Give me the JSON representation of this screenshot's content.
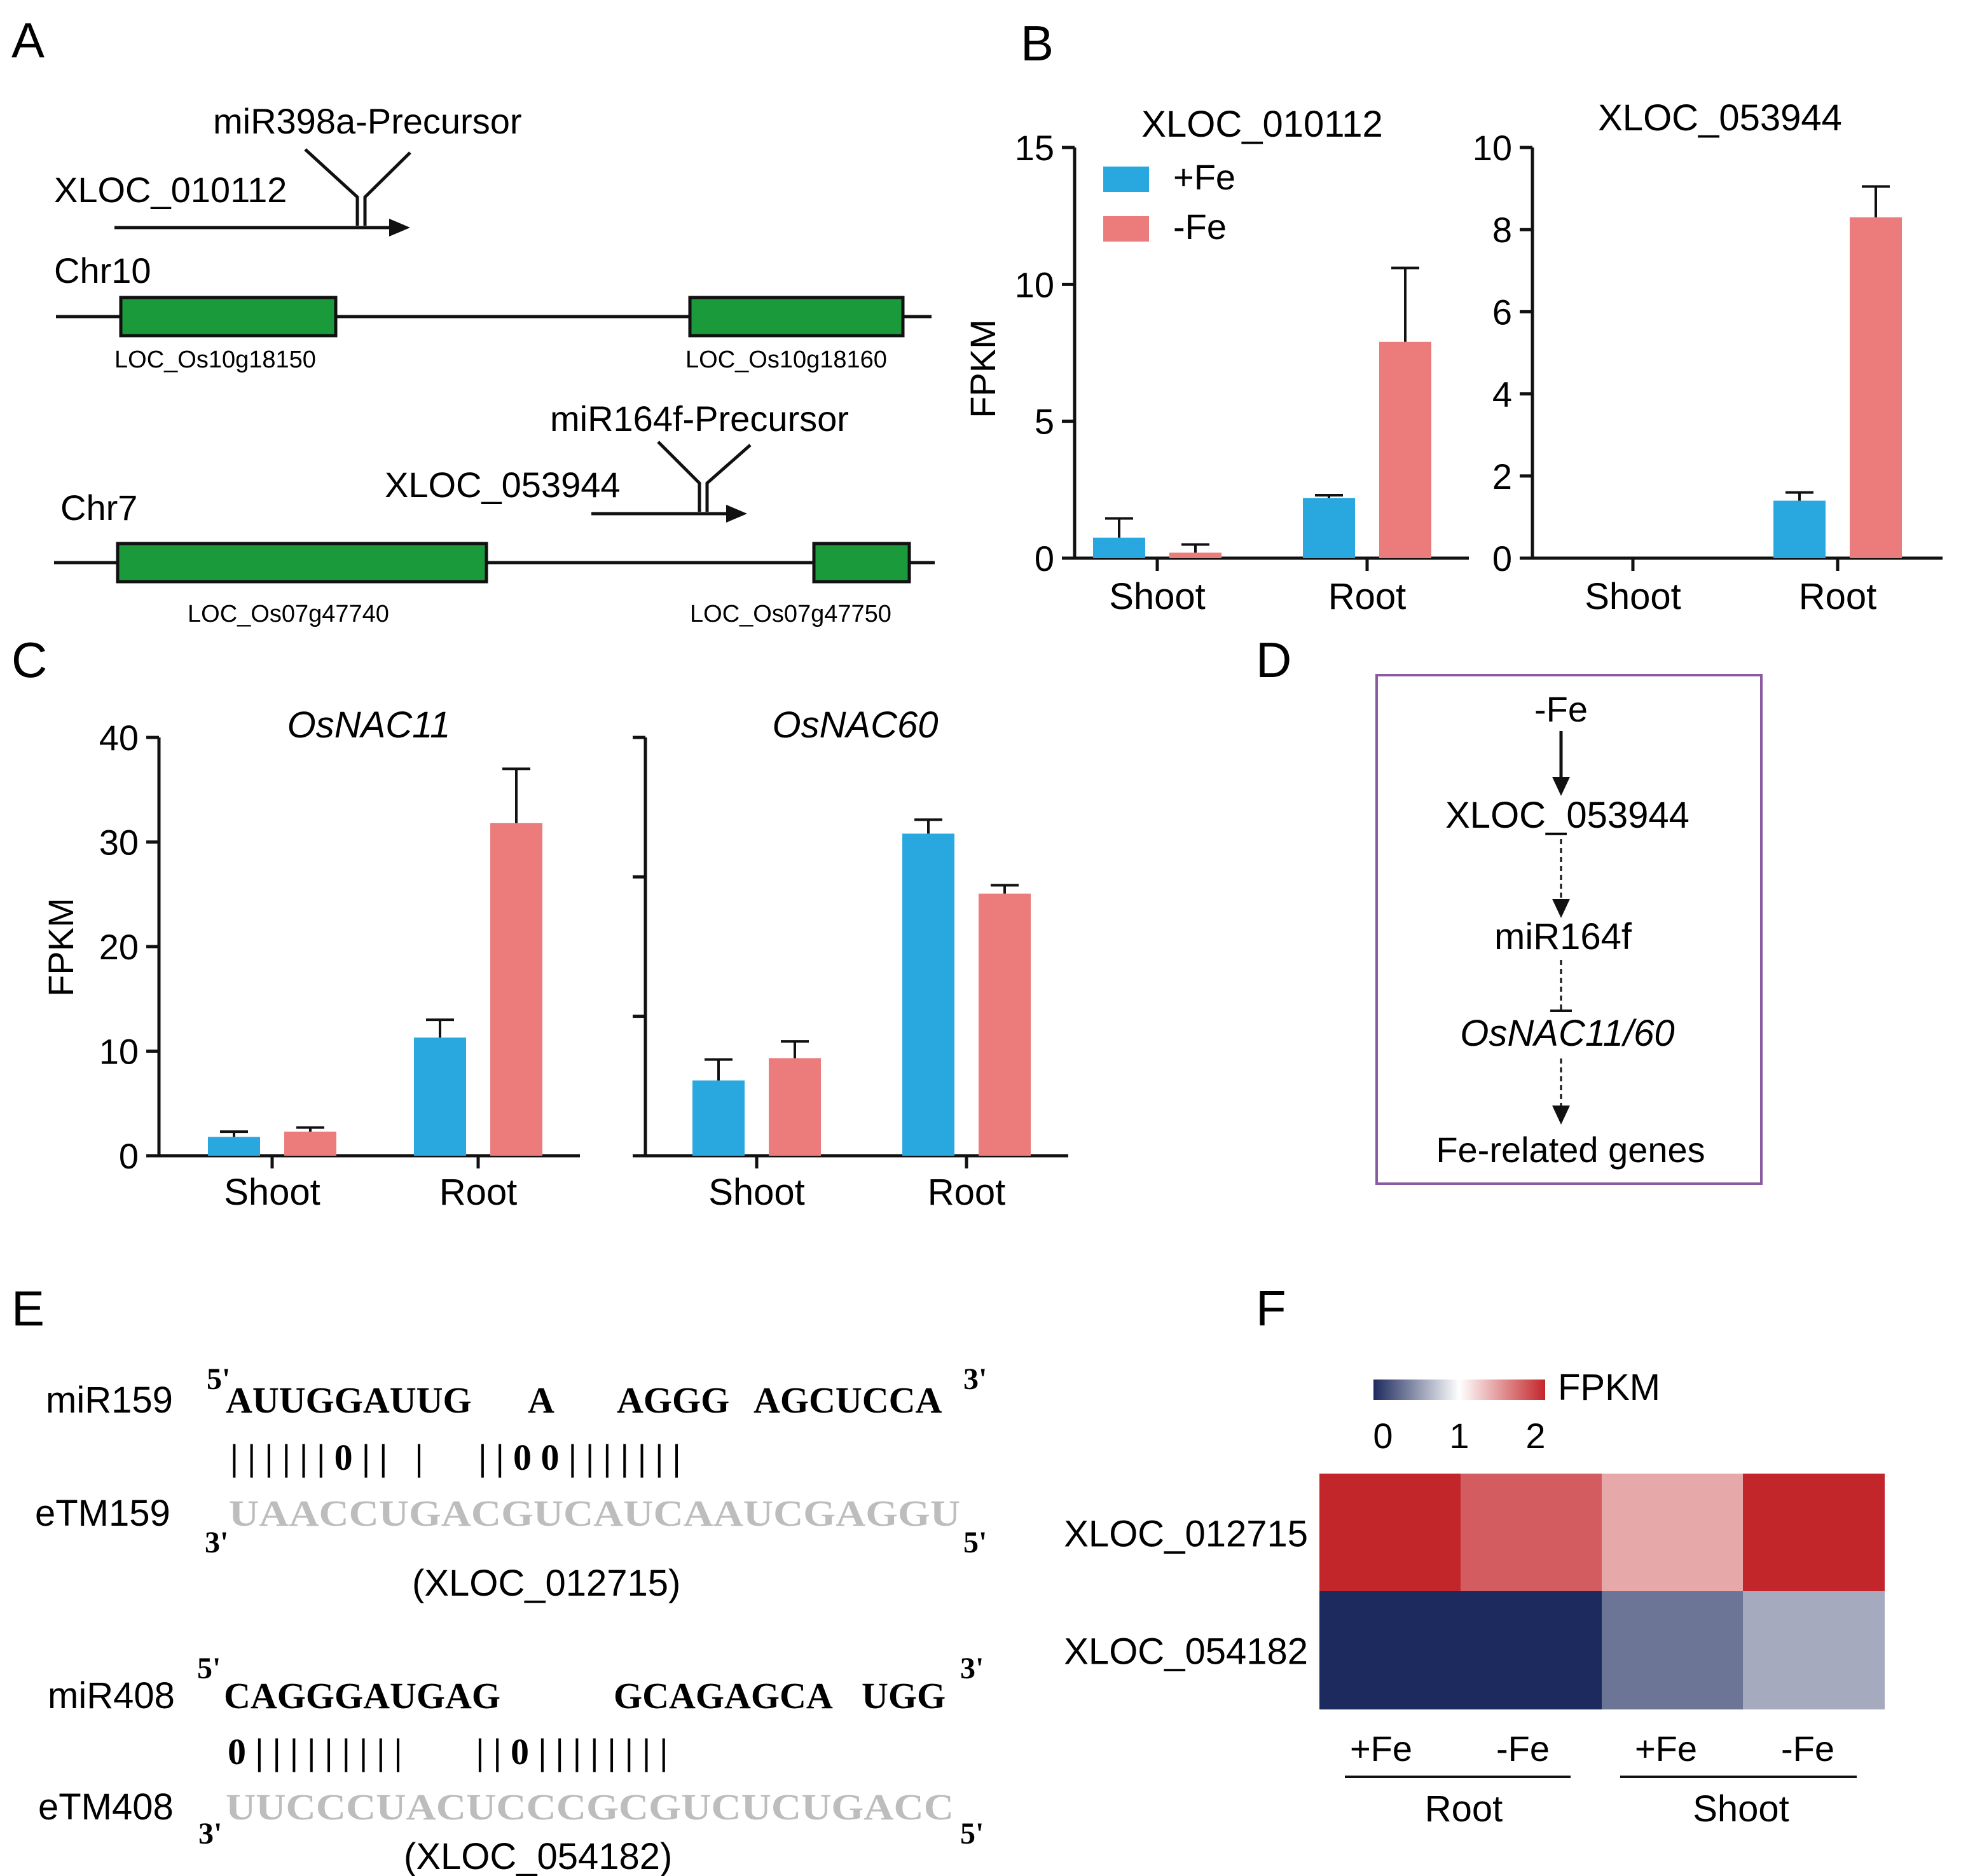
{
  "panel_labels": {
    "a": "A",
    "b": "B",
    "c": "C",
    "d": "D",
    "e": "E",
    "f": "F"
  },
  "colors": {
    "plus_fe": "#29a8e0",
    "minus_fe": "#ec7b7b",
    "gene_box": "#1a9a3a",
    "frame_d": "#8a5aa0"
  },
  "panelA": {
    "precursor1": "miR398a-Precursor",
    "xloc1": "XLOC_010112",
    "chr1": "Chr10",
    "gene1a": "LOC_Os10g18150",
    "gene1b": "LOC_Os10g18160",
    "precursor2": "miR164f-Precursor",
    "xloc2": "XLOC_053944",
    "chr2": "Chr7",
    "gene2a": "LOC_Os07g47740",
    "gene2b": "LOC_Os07g47750"
  },
  "legend": {
    "plus": "+Fe",
    "minus": "-Fe"
  },
  "chart_data": [
    {
      "id": "b1",
      "type": "bar",
      "title": "XLOC_010112",
      "ylabel": "FPKM",
      "ylim": [
        0,
        15
      ],
      "yticks": [
        "0",
        "5",
        "10",
        "15"
      ],
      "categories": [
        "Shoot",
        "Root"
      ],
      "series": [
        {
          "name": "+Fe",
          "values": [
            0.75,
            2.2
          ],
          "errors": [
            0.7,
            0.1
          ]
        },
        {
          "name": "-Fe",
          "values": [
            0.2,
            7.9
          ],
          "errors": [
            0.3,
            2.7
          ]
        }
      ]
    },
    {
      "id": "b2",
      "type": "bar",
      "title": "XLOC_053944",
      "ylabel": "",
      "ylim": [
        0,
        10
      ],
      "yticks": [
        "0",
        "2",
        "4",
        "6",
        "8",
        "10"
      ],
      "categories": [
        "Shoot",
        "Root"
      ],
      "series": [
        {
          "name": "+Fe",
          "values": [
            0,
            1.4
          ],
          "errors": [
            0,
            0.2
          ]
        },
        {
          "name": "-Fe",
          "values": [
            0,
            8.3
          ],
          "errors": [
            0,
            0.75
          ]
        }
      ]
    },
    {
      "id": "c1",
      "type": "bar",
      "title": "OsNAC11",
      "ylabel": "FPKM",
      "ylim": [
        0,
        40
      ],
      "yticks": [
        "0",
        "10",
        "20",
        "30",
        "40"
      ],
      "categories": [
        "Shoot",
        "Root"
      ],
      "series": [
        {
          "name": "+Fe",
          "values": [
            1.8,
            11.3
          ],
          "errors": [
            0.5,
            1.7
          ]
        },
        {
          "name": "-Fe",
          "values": [
            2.3,
            31.8
          ],
          "errors": [
            0.4,
            5.2
          ]
        }
      ]
    },
    {
      "id": "c2",
      "type": "bar",
      "title": "OsNAC60",
      "ylabel": "",
      "ylim": [
        0,
        30
      ],
      "yticks": [
        "",
        "",
        "",
        ""
      ],
      "categories": [
        "Shoot",
        "Root"
      ],
      "series": [
        {
          "name": "+Fe",
          "values": [
            5.4,
            23.1
          ],
          "errors": [
            1.5,
            1.0
          ]
        },
        {
          "name": "-Fe",
          "values": [
            7.0,
            18.8
          ],
          "errors": [
            1.2,
            0.6
          ]
        }
      ]
    },
    {
      "id": "f",
      "type": "heatmap",
      "legend_title": "FPKM",
      "scale_ticks": [
        "0",
        "1",
        "2"
      ],
      "range": [
        0,
        2
      ],
      "rows": [
        "XLOC_012715",
        "XLOC_054182"
      ],
      "columns": [
        "+Fe",
        "-Fe",
        "+Fe",
        "-Fe"
      ],
      "groups": [
        "Root",
        "Shoot"
      ],
      "values": [
        [
          2.0,
          1.75,
          1.4,
          2.0
        ],
        [
          0.0,
          0.0,
          0.35,
          0.6
        ]
      ]
    }
  ],
  "panelD": {
    "n1": "-Fe",
    "n2": "XLOC_053944",
    "n3": "miR164f",
    "n4": "OsNAC11/60",
    "n5": "Fe-related genes"
  },
  "panelE": {
    "mir1": "miR159",
    "mir1_seq_a": "AUUGGAUUG",
    "mir1_seq_b": "A",
    "mir1_seq_c": "AGGG",
    "mir1_seq_d": "AGCUCCA",
    "pair1": "| | | | | | 0 | |   |      | | 0 0 | | | | | | |",
    "etm1": "eTM159",
    "etm1_seq": "UAACCUGACGUCAUCAAUCGAGGU",
    "xloc1": "(XLOC_012715)",
    "mir2": "miR408",
    "mir2_seq_a": "CAGGGAUGAG",
    "mir2_seq_b": "GCAGAGCA",
    "mir2_seq_c": "UGG",
    "pair2": "0 | | | | | | | | |        | | 0 | | | | | | | |",
    "etm2": "eTM408",
    "etm2_seq": "UUCCCUACUCCCGCGUCUCUGACC",
    "xloc2": "(XLOC_054182)",
    "five": "5'",
    "three": "3'"
  }
}
